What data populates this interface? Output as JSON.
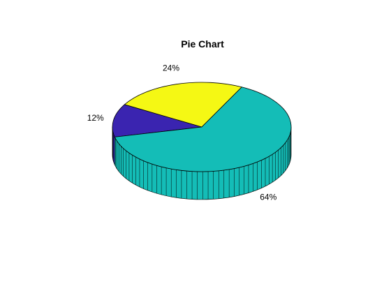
{
  "chart_data": {
    "type": "pie",
    "title": "Pie Chart",
    "three_d": true,
    "slices": [
      {
        "label": "12%",
        "value": 12,
        "color": "#3a24b0"
      },
      {
        "label": "24%",
        "value": 24,
        "color": "#f5f814"
      },
      {
        "label": "64%",
        "value": 64,
        "color": "#14bdb7"
      }
    ]
  }
}
